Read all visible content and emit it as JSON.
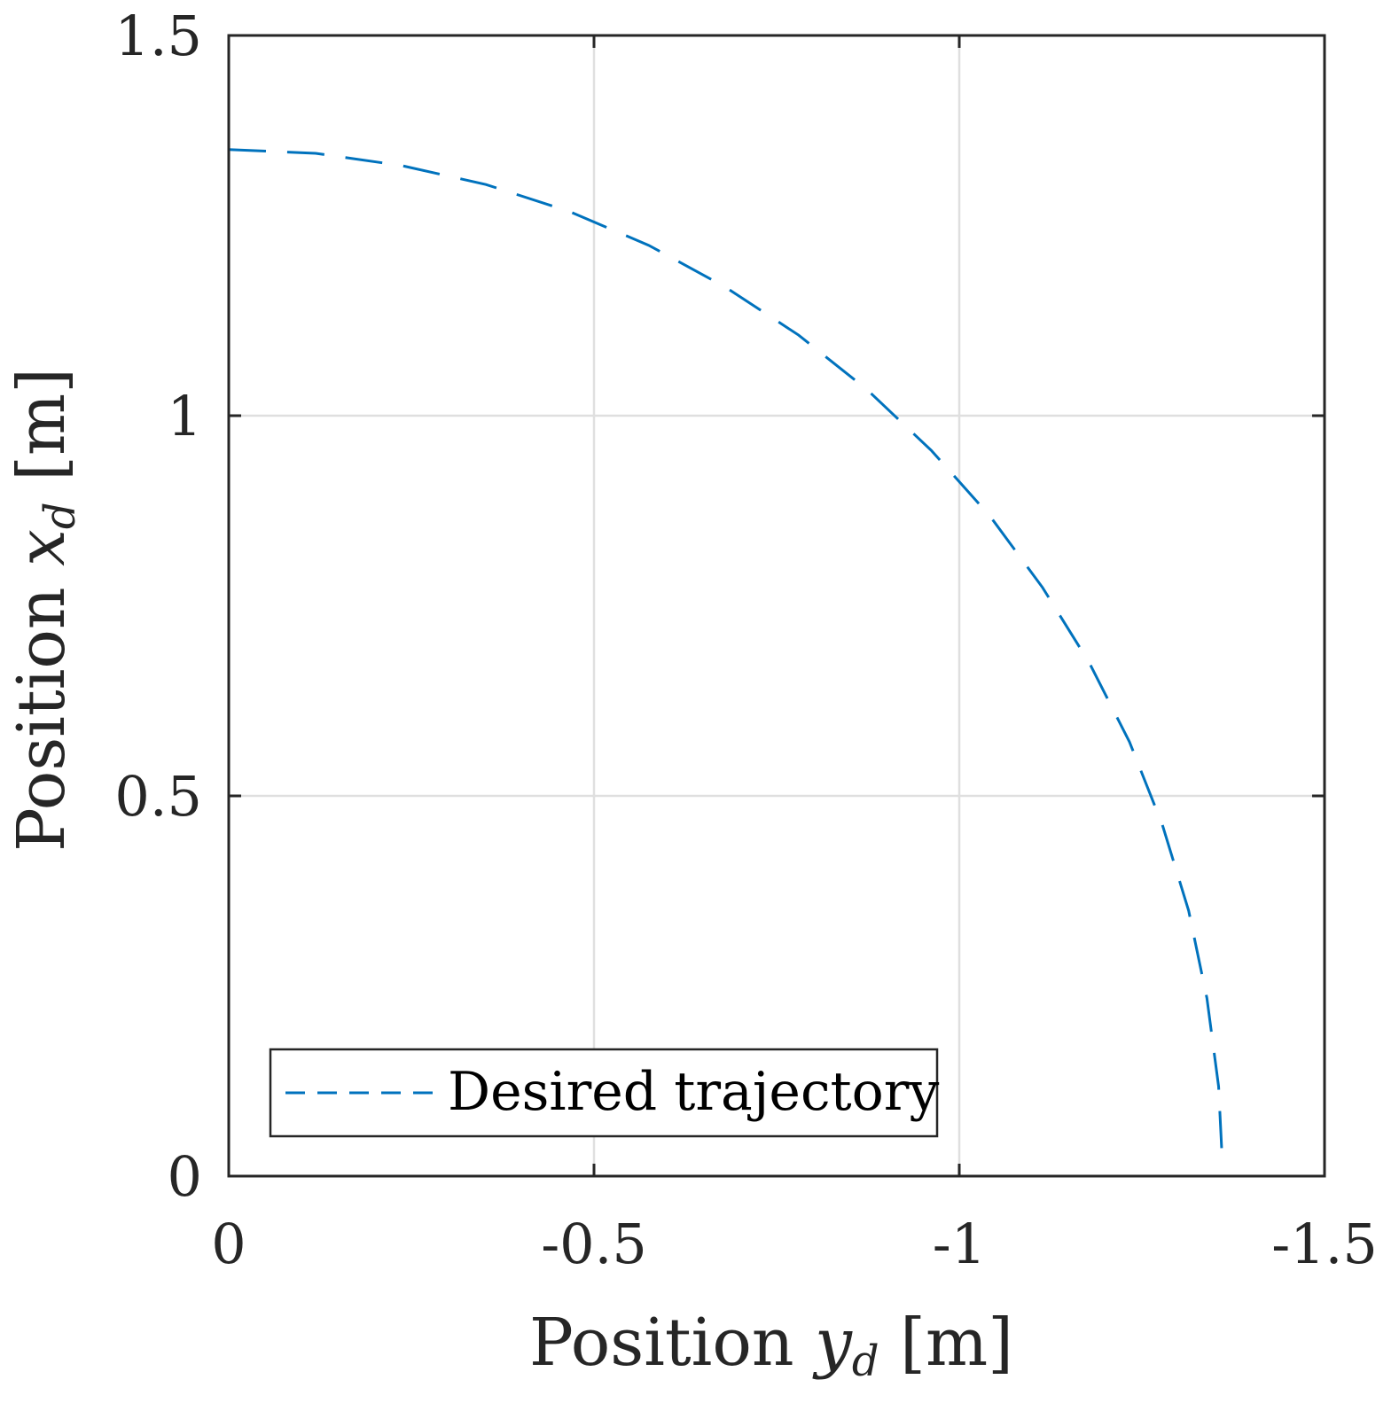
{
  "chart_data": {
    "type": "line",
    "xlabel": "Position y_d [m]",
    "xlabel_parts": {
      "pre": "Position ",
      "var": "y",
      "sub": "d",
      "post": " [m]"
    },
    "ylabel_parts": {
      "pre": "Position ",
      "var": "x",
      "sub": "d",
      "post": " [m]"
    },
    "xlim": [
      0,
      -1.5
    ],
    "ylim": [
      0,
      1.5
    ],
    "x_axis_reversed": true,
    "xticks": [
      0,
      -0.5,
      -1,
      -1.5
    ],
    "xtick_labels": [
      "0",
      "-0.5",
      "-1",
      "-1.5"
    ],
    "yticks": [
      0,
      0.5,
      1,
      1.5
    ],
    "ytick_labels": [
      "0",
      "0.5",
      "1",
      "1.5"
    ],
    "grid": true,
    "legend_placement": "bottom-left",
    "series": [
      {
        "name": "Desired trajectory",
        "color": "#0072BD",
        "line_style": "dashed",
        "x": [
          0,
          -0.119,
          -0.236,
          -0.352,
          -0.465,
          -0.575,
          -0.68,
          -0.78,
          -0.874,
          -0.962,
          -1.042,
          -1.114,
          -1.178,
          -1.233,
          -1.278,
          -1.314,
          -1.339,
          -1.355,
          -1.36
        ],
        "y": [
          1.35,
          1.345,
          1.329,
          1.304,
          1.269,
          1.224,
          1.169,
          1.106,
          1.034,
          0.954,
          0.868,
          0.774,
          0.675,
          0.571,
          0.462,
          0.349,
          0.234,
          0.118,
          0.02
        ]
      }
    ]
  }
}
